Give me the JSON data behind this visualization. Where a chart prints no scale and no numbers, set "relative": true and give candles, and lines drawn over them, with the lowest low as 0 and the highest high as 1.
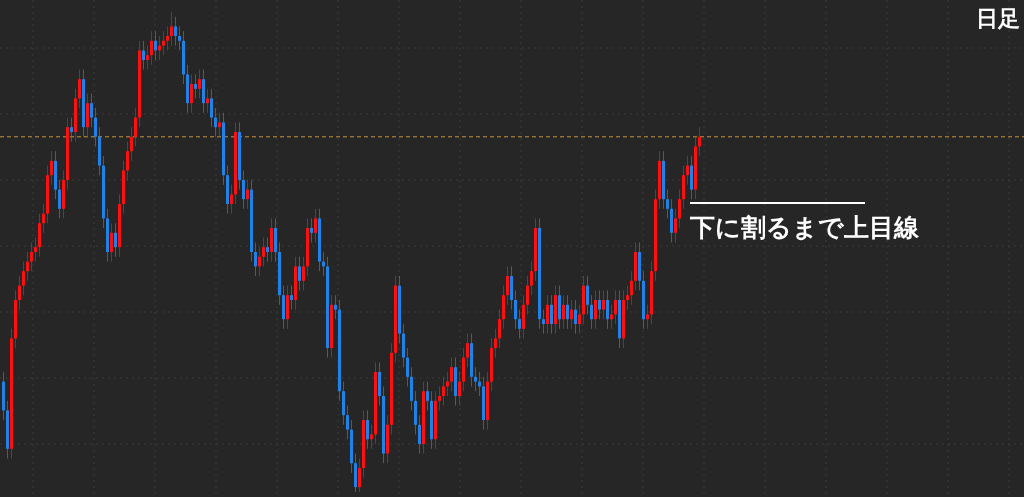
{
  "chart_data": {
    "type": "candlestick",
    "title": "日足",
    "relative": true,
    "grid": true,
    "colors": [
      "#1e82e6",
      "#1e82e6",
      "#ff1010",
      "#ff1010",
      "#ff1010",
      "#ff1010",
      "#ff1010",
      "#ff1010",
      "#ff1010",
      "#ff1010",
      "#ff1010",
      "#ff1010",
      "#ff1010",
      "#1e82e6",
      "#1e82e6",
      "#ff1010",
      "#ff1010",
      "#1e82e6",
      "#ff1010",
      "#ff1010",
      "#1e82e6",
      "#ff1010",
      "#1e82e6",
      "#1e82e6",
      "#1e82e6",
      "#1e82e6",
      "#1e82e6",
      "#ff1010",
      "#1e82e6",
      "#ff1010",
      "#ff1010",
      "#ff1010",
      "#ff1010",
      "#ff1010",
      "#ff1010",
      "#1e82e6",
      "#ff1010",
      "#ff1010",
      "#1e82e6",
      "#ff1010",
      "#ff1010",
      "#ff1010",
      "#ff1010",
      "#1e82e6",
      "#1e82e6",
      "#1e82e6",
      "#1e82e6",
      "#ff1010",
      "#1e82e6",
      "#ff1010",
      "#1e82e6",
      "#ff1010",
      "#1e82e6",
      "#1e82e6",
      "#ff1010",
      "#1e82e6",
      "#1e82e6",
      "#ff1010",
      "#ff1010",
      "#1e82e6",
      "#1e82e6",
      "#ff1010",
      "#1e82e6",
      "#1e82e6",
      "#ff1010",
      "#ff1010",
      "#1e82e6",
      "#ff1010",
      "#1e82e6",
      "#1e82e6",
      "#1e82e6",
      "#ff1010",
      "#1e82e6",
      "#ff1010",
      "#1e82e6",
      "#ff1010",
      "#ff1010",
      "#1e82e6",
      "#ff1010",
      "#1e82e6",
      "#1e82e6",
      "#1e82e6",
      "#ff1010",
      "#1e82e6",
      "#1e82e6",
      "#1e82e6",
      "#1e82e6",
      "#1e82e6",
      "#1e82e6",
      "#ff1010",
      "#ff1010",
      "#1e82e6",
      "#ff1010",
      "#ff1010",
      "#1e82e6",
      "#1e82e6",
      "#ff1010",
      "#ff1010",
      "#ff1010",
      "#1e82e6",
      "#1e82e6",
      "#1e82e6",
      "#1e82e6",
      "#1e82e6",
      "#1e82e6",
      "#ff1010",
      "#1e82e6",
      "#1e82e6",
      "#ff1010",
      "#ff1010",
      "#ff1010",
      "#ff1010",
      "#ff1010",
      "#1e82e6",
      "#ff1010",
      "#ff1010",
      "#ff1010",
      "#1e82e6",
      "#1e82e6",
      "#1e82e6",
      "#1e82e6",
      "#ff1010",
      "#ff1010",
      "#ff1010",
      "#ff1010",
      "#ff1010",
      "#ff1010",
      "#1e82e6",
      "#1e82e6",
      "#1e82e6",
      "#ff1010",
      "#ff1010",
      "#ff1010",
      "#ff1010",
      "#1e82e6",
      "#1e82e6",
      "#ff1010",
      "#1e82e6",
      "#ff1010",
      "#1e82e6",
      "#ff1010",
      "#1e82e6",
      "#ff1010",
      "#1e82e6",
      "#ff1010",
      "#ff1010",
      "#1e82e6",
      "#1e82e6",
      "#ff1010",
      "#1e82e6",
      "#ff1010",
      "#1e82e6",
      "#ff1010",
      "#ff1010",
      "#1e82e6",
      "#ff1010",
      "#ff1010",
      "#ff1010",
      "#ff1010",
      "#1e82e6",
      "#1e82e6",
      "#ff1010",
      "#ff1010",
      "#ff1010",
      "#ff1010",
      "#1e82e6",
      "#1e82e6",
      "#1e82e6",
      "#ff1010",
      "#ff1010",
      "#ff1010",
      "#ff1010",
      "#1e82e6",
      "#ff1010",
      "#ff1010"
    ],
    "categories": [
      null,
      null,
      null,
      null,
      null,
      null,
      null,
      null,
      null,
      null,
      null,
      null,
      null,
      null,
      null,
      null,
      null,
      null,
      null,
      null,
      null,
      null,
      null,
      null,
      null,
      null,
      null,
      null,
      null,
      null,
      null,
      null,
      null,
      null,
      null,
      null,
      null,
      null,
      null,
      null,
      null,
      null,
      null,
      null,
      null,
      null,
      null,
      null,
      null,
      null,
      null,
      null,
      null,
      null,
      null,
      null,
      null,
      null,
      null,
      null,
      null,
      null,
      null,
      null,
      null,
      null,
      null,
      null,
      null,
      null,
      null,
      null,
      null,
      null,
      null,
      null,
      null,
      null,
      null,
      null,
      null,
      null,
      null,
      null,
      null,
      null,
      null,
      null,
      null,
      null,
      null,
      null,
      null,
      null,
      null,
      null,
      null,
      null,
      null,
      null,
      null,
      null,
      null,
      null,
      null,
      null,
      null,
      null,
      null,
      null,
      null,
      null,
      null,
      null,
      null,
      null,
      null,
      null,
      null,
      null,
      null,
      null,
      null,
      null,
      null,
      null,
      null,
      null,
      null,
      null,
      null,
      null,
      null,
      null,
      null,
      null,
      null,
      null,
      null,
      null,
      null,
      null,
      null,
      null,
      null,
      null,
      null,
      null,
      null,
      null,
      null,
      null,
      null,
      null,
      null,
      null,
      null,
      null,
      null,
      null,
      null,
      null,
      null,
      null,
      null,
      null,
      null,
      null,
      null,
      null,
      null,
      null,
      null,
      null,
      null
    ],
    "ohlc": [
      [
        0.23,
        0.25,
        0.15,
        0.17
      ],
      [
        0.17,
        0.19,
        0.07,
        0.09
      ],
      [
        0.09,
        0.34,
        0.07,
        0.32
      ],
      [
        0.32,
        0.42,
        0.3,
        0.4
      ],
      [
        0.4,
        0.45,
        0.38,
        0.43
      ],
      [
        0.43,
        0.48,
        0.41,
        0.46
      ],
      [
        0.46,
        0.5,
        0.44,
        0.48
      ],
      [
        0.48,
        0.52,
        0.46,
        0.5
      ],
      [
        0.5,
        0.53,
        0.48,
        0.51
      ],
      [
        0.51,
        0.58,
        0.49,
        0.56
      ],
      [
        0.56,
        0.6,
        0.54,
        0.58
      ],
      [
        0.58,
        0.68,
        0.56,
        0.66
      ],
      [
        0.66,
        0.71,
        0.64,
        0.69
      ],
      [
        0.69,
        0.71,
        0.61,
        0.63
      ],
      [
        0.63,
        0.65,
        0.57,
        0.59
      ],
      [
        0.59,
        0.67,
        0.57,
        0.65
      ],
      [
        0.65,
        0.78,
        0.63,
        0.76
      ],
      [
        0.76,
        0.78,
        0.73,
        0.75
      ],
      [
        0.75,
        0.84,
        0.73,
        0.82
      ],
      [
        0.82,
        0.88,
        0.8,
        0.86
      ],
      [
        0.86,
        0.88,
        0.74,
        0.76
      ],
      [
        0.76,
        0.83,
        0.74,
        0.81
      ],
      [
        0.81,
        0.83,
        0.76,
        0.78
      ],
      [
        0.78,
        0.8,
        0.72,
        0.74
      ],
      [
        0.74,
        0.76,
        0.66,
        0.68
      ],
      [
        0.68,
        0.7,
        0.55,
        0.57
      ],
      [
        0.57,
        0.59,
        0.48,
        0.5
      ],
      [
        0.5,
        0.56,
        0.48,
        0.54
      ],
      [
        0.54,
        0.56,
        0.49,
        0.51
      ],
      [
        0.51,
        0.62,
        0.49,
        0.6
      ],
      [
        0.6,
        0.69,
        0.58,
        0.67
      ],
      [
        0.67,
        0.73,
        0.65,
        0.71
      ],
      [
        0.71,
        0.76,
        0.69,
        0.74
      ],
      [
        0.74,
        0.8,
        0.72,
        0.78
      ],
      [
        0.78,
        0.94,
        0.76,
        0.92
      ],
      [
        0.92,
        0.94,
        0.88,
        0.9
      ],
      [
        0.9,
        0.93,
        0.88,
        0.91
      ],
      [
        0.91,
        0.96,
        0.89,
        0.94
      ],
      [
        0.94,
        0.96,
        0.9,
        0.92
      ],
      [
        0.92,
        0.95,
        0.9,
        0.93
      ],
      [
        0.93,
        0.96,
        0.91,
        0.94
      ],
      [
        0.94,
        0.97,
        0.92,
        0.95
      ],
      [
        0.95,
        1,
        0.93,
        0.97
      ],
      [
        0.97,
        0.99,
        0.93,
        0.95
      ],
      [
        0.95,
        0.97,
        0.92,
        0.94
      ],
      [
        0.94,
        0.96,
        0.85,
        0.87
      ],
      [
        0.87,
        0.89,
        0.79,
        0.81
      ],
      [
        0.81,
        0.87,
        0.79,
        0.85
      ],
      [
        0.85,
        0.87,
        0.82,
        0.84
      ],
      [
        0.84,
        0.88,
        0.82,
        0.86
      ],
      [
        0.86,
        0.88,
        0.79,
        0.81
      ],
      [
        0.81,
        0.84,
        0.79,
        0.82
      ],
      [
        0.82,
        0.84,
        0.76,
        0.78
      ],
      [
        0.78,
        0.8,
        0.74,
        0.76
      ],
      [
        0.76,
        0.79,
        0.74,
        0.77
      ],
      [
        0.77,
        0.79,
        0.64,
        0.66
      ],
      [
        0.66,
        0.68,
        0.58,
        0.6
      ],
      [
        0.6,
        0.64,
        0.58,
        0.62
      ],
      [
        0.62,
        0.77,
        0.6,
        0.75
      ],
      [
        0.75,
        0.77,
        0.63,
        0.65
      ],
      [
        0.65,
        0.67,
        0.59,
        0.61
      ],
      [
        0.61,
        0.65,
        0.59,
        0.63
      ],
      [
        0.63,
        0.65,
        0.48,
        0.5
      ],
      [
        0.5,
        0.52,
        0.45,
        0.47
      ],
      [
        0.47,
        0.51,
        0.45,
        0.49
      ],
      [
        0.49,
        0.53,
        0.47,
        0.51
      ],
      [
        0.51,
        0.53,
        0.48,
        0.5
      ],
      [
        0.5,
        0.57,
        0.48,
        0.55
      ],
      [
        0.55,
        0.57,
        0.48,
        0.5
      ],
      [
        0.5,
        0.52,
        0.39,
        0.41
      ],
      [
        0.41,
        0.43,
        0.34,
        0.36
      ],
      [
        0.36,
        0.43,
        0.34,
        0.41
      ],
      [
        0.41,
        0.43,
        0.38,
        0.4
      ],
      [
        0.4,
        0.49,
        0.38,
        0.47
      ],
      [
        0.47,
        0.49,
        0.42,
        0.44
      ],
      [
        0.44,
        0.49,
        0.42,
        0.47
      ],
      [
        0.47,
        0.57,
        0.45,
        0.55
      ],
      [
        0.55,
        0.57,
        0.52,
        0.54
      ],
      [
        0.54,
        0.59,
        0.52,
        0.57
      ],
      [
        0.57,
        0.59,
        0.46,
        0.48
      ],
      [
        0.48,
        0.5,
        0.45,
        0.47
      ],
      [
        0.47,
        0.49,
        0.28,
        0.3
      ],
      [
        0.3,
        0.41,
        0.28,
        0.39
      ],
      [
        0.39,
        0.41,
        0.36,
        0.38
      ],
      [
        0.38,
        0.4,
        0.19,
        0.21
      ],
      [
        0.21,
        0.23,
        0.14,
        0.16
      ],
      [
        0.16,
        0.18,
        0.11,
        0.13
      ],
      [
        0.13,
        0.15,
        0.04,
        0.06
      ],
      [
        0.06,
        0.08,
        0,
        0.01
      ],
      [
        0.01,
        0.07,
        0,
        0.05
      ],
      [
        0.05,
        0.17,
        0.03,
        0.15
      ],
      [
        0.15,
        0.17,
        0.09,
        0.11
      ],
      [
        0.11,
        0.14,
        0.09,
        0.12
      ],
      [
        0.12,
        0.27,
        0.1,
        0.25
      ],
      [
        0.25,
        0.27,
        0.18,
        0.2
      ],
      [
        0.2,
        0.22,
        0.06,
        0.08
      ],
      [
        0.08,
        0.16,
        0.06,
        0.14
      ],
      [
        0.14,
        0.31,
        0.12,
        0.29
      ],
      [
        0.29,
        0.45,
        0.27,
        0.43
      ],
      [
        0.43,
        0.45,
        0.31,
        0.33
      ],
      [
        0.33,
        0.35,
        0.26,
        0.28
      ],
      [
        0.28,
        0.3,
        0.22,
        0.24
      ],
      [
        0.24,
        0.26,
        0.17,
        0.19
      ],
      [
        0.19,
        0.21,
        0.12,
        0.14
      ],
      [
        0.14,
        0.16,
        0.08,
        0.1
      ],
      [
        0.1,
        0.23,
        0.08,
        0.21
      ],
      [
        0.21,
        0.23,
        0.17,
        0.19
      ],
      [
        0.19,
        0.21,
        0.09,
        0.11
      ],
      [
        0.11,
        0.21,
        0.09,
        0.19
      ],
      [
        0.19,
        0.22,
        0.17,
        0.2
      ],
      [
        0.2,
        0.24,
        0.18,
        0.22
      ],
      [
        0.22,
        0.25,
        0.2,
        0.23
      ],
      [
        0.23,
        0.28,
        0.21,
        0.26
      ],
      [
        0.26,
        0.28,
        0.18,
        0.2
      ],
      [
        0.2,
        0.25,
        0.18,
        0.23
      ],
      [
        0.23,
        0.3,
        0.21,
        0.28
      ],
      [
        0.28,
        0.33,
        0.26,
        0.31
      ],
      [
        0.31,
        0.33,
        0.22,
        0.24
      ],
      [
        0.24,
        0.26,
        0.21,
        0.23
      ],
      [
        0.23,
        0.25,
        0.2,
        0.22
      ],
      [
        0.22,
        0.24,
        0.13,
        0.15
      ],
      [
        0.15,
        0.25,
        0.13,
        0.23
      ],
      [
        0.23,
        0.32,
        0.21,
        0.3
      ],
      [
        0.3,
        0.34,
        0.28,
        0.32
      ],
      [
        0.32,
        0.38,
        0.3,
        0.36
      ],
      [
        0.36,
        0.43,
        0.34,
        0.41
      ],
      [
        0.41,
        0.47,
        0.39,
        0.45
      ],
      [
        0.45,
        0.47,
        0.38,
        0.4
      ],
      [
        0.4,
        0.42,
        0.34,
        0.36
      ],
      [
        0.36,
        0.38,
        0.32,
        0.34
      ],
      [
        0.34,
        0.41,
        0.32,
        0.39
      ],
      [
        0.39,
        0.45,
        0.37,
        0.43
      ],
      [
        0.43,
        0.48,
        0.41,
        0.46
      ],
      [
        0.46,
        0.57,
        0.44,
        0.55
      ],
      [
        0.55,
        0.57,
        0.34,
        0.36
      ],
      [
        0.36,
        0.38,
        0.33,
        0.35
      ],
      [
        0.35,
        0.41,
        0.33,
        0.39
      ],
      [
        0.39,
        0.41,
        0.33,
        0.35
      ],
      [
        0.35,
        0.43,
        0.33,
        0.41
      ],
      [
        0.41,
        0.43,
        0.34,
        0.36
      ],
      [
        0.36,
        0.41,
        0.34,
        0.39
      ],
      [
        0.39,
        0.41,
        0.34,
        0.36
      ],
      [
        0.36,
        0.4,
        0.34,
        0.38
      ],
      [
        0.38,
        0.4,
        0.33,
        0.35
      ],
      [
        0.35,
        0.39,
        0.33,
        0.37
      ],
      [
        0.37,
        0.45,
        0.35,
        0.43
      ],
      [
        0.43,
        0.45,
        0.37,
        0.39
      ],
      [
        0.39,
        0.41,
        0.34,
        0.36
      ],
      [
        0.36,
        0.42,
        0.34,
        0.4
      ],
      [
        0.4,
        0.42,
        0.36,
        0.38
      ],
      [
        0.38,
        0.42,
        0.36,
        0.4
      ],
      [
        0.4,
        0.42,
        0.34,
        0.36
      ],
      [
        0.36,
        0.39,
        0.34,
        0.37
      ],
      [
        0.37,
        0.42,
        0.35,
        0.4
      ],
      [
        0.4,
        0.42,
        0.3,
        0.32
      ],
      [
        0.32,
        0.42,
        0.3,
        0.4
      ],
      [
        0.4,
        0.43,
        0.38,
        0.41
      ],
      [
        0.41,
        0.46,
        0.39,
        0.44
      ],
      [
        0.44,
        0.52,
        0.42,
        0.5
      ],
      [
        0.5,
        0.52,
        0.42,
        0.44
      ],
      [
        0.44,
        0.46,
        0.34,
        0.36
      ],
      [
        0.36,
        0.39,
        0.34,
        0.37
      ],
      [
        0.37,
        0.48,
        0.35,
        0.46
      ],
      [
        0.46,
        0.63,
        0.44,
        0.61
      ],
      [
        0.61,
        0.71,
        0.59,
        0.69
      ],
      [
        0.69,
        0.71,
        0.59,
        0.61
      ],
      [
        0.61,
        0.63,
        0.57,
        0.59
      ],
      [
        0.59,
        0.61,
        0.52,
        0.54
      ],
      [
        0.54,
        0.59,
        0.52,
        0.57
      ],
      [
        0.57,
        0.63,
        0.55,
        0.61
      ],
      [
        0.61,
        0.68,
        0.59,
        0.66
      ],
      [
        0.66,
        0.7,
        0.64,
        0.68
      ],
      [
        0.68,
        0.7,
        0.61,
        0.63
      ],
      [
        0.63,
        0.74,
        0.61,
        0.72
      ],
      [
        0.72,
        0.76,
        0.7,
        0.74
      ]
    ],
    "ref_lines": [
      {
        "axis": "y",
        "value": 0.74,
        "color": "#c8963c",
        "line_style": "dashed"
      }
    ],
    "annotations": [
      "下に割るまで上目線"
    ]
  }
}
